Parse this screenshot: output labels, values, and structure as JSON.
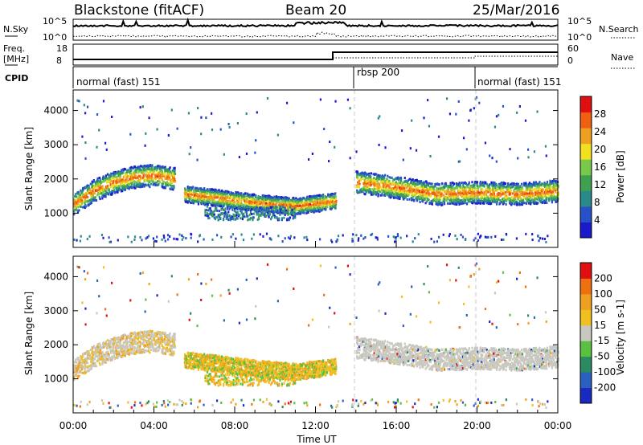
{
  "header": {
    "site": "Blackstone (fitACF)",
    "beam": "Beam 20",
    "date": "25/Mar/2016"
  },
  "noise_panel": {
    "left_label": "N.Sky",
    "right_label": "N.Search",
    "left_ticks": [
      "10^5",
      "10^0"
    ],
    "right_ticks": [
      "10^5",
      "10^0"
    ]
  },
  "freq_panel": {
    "left_label_line1": "Freq.",
    "left_label_line2": "[MHz]",
    "right_label": "Nave",
    "left_ticks": [
      "18",
      "8"
    ],
    "right_ticks": [
      "60",
      "0"
    ]
  },
  "cpid_panel": {
    "label": "CPID",
    "segments": [
      "normal (fast) 151",
      "rbsp 200",
      "normal (fast) 151"
    ]
  },
  "x_axis": {
    "label": "Time UT",
    "ticks": [
      "00:00",
      "04:00",
      "08:00",
      "12:00",
      "16:00",
      "20:00",
      "00:00"
    ]
  },
  "colors": {
    "power_scale": [
      "#1a1acc",
      "#2850c8",
      "#2a8a8a",
      "#3fa050",
      "#78c84a",
      "#f0e020",
      "#f0a020",
      "#f06010",
      "#e01010"
    ],
    "velocity_scale": [
      "#1a2ac0",
      "#2a60c0",
      "#2a8a60",
      "#5ac040",
      "#c8c8c0",
      "#f0c020",
      "#f0a020",
      "#f07010",
      "#e01010"
    ]
  },
  "chart_data": [
    {
      "type": "heatmap",
      "panel": "power",
      "xlabel": "Time UT",
      "ylabel": "Slant Range [km]",
      "ylim": [
        0,
        4600
      ],
      "x_range_hours": [
        0,
        24
      ],
      "yticks": [
        "1000",
        "2000",
        "3000",
        "4000"
      ],
      "colorbar": {
        "label": "Power [dB]",
        "ticks": [
          "28",
          "24",
          "20",
          "16",
          "12",
          "8",
          "4"
        ]
      },
      "echo_bands": [
        {
          "t": [
            0,
            1,
            2,
            3,
            4,
            5
          ],
          "center_km": [
            1250,
            1650,
            1900,
            2050,
            2100,
            2000
          ]
        },
        {
          "t": [
            5.5,
            7,
            9,
            11,
            13
          ],
          "center_km": [
            1550,
            1450,
            1300,
            1200,
            1350
          ]
        },
        {
          "t": [
            14,
            16,
            18,
            20,
            22,
            24
          ],
          "center_km": [
            1900,
            1750,
            1550,
            1600,
            1550,
            1650
          ]
        }
      ]
    },
    {
      "type": "heatmap",
      "panel": "velocity",
      "xlabel": "Time UT",
      "ylabel": "Slant Range [km]",
      "ylim": [
        0,
        4600
      ],
      "x_range_hours": [
        0,
        24
      ],
      "yticks": [
        "1000",
        "2000",
        "3000",
        "4000"
      ],
      "colorbar": {
        "label": "Velocity [m s-1]",
        "ticks": [
          "200",
          "100",
          "50",
          "15",
          "-15",
          "-50",
          "-100",
          "-200"
        ]
      }
    }
  ]
}
